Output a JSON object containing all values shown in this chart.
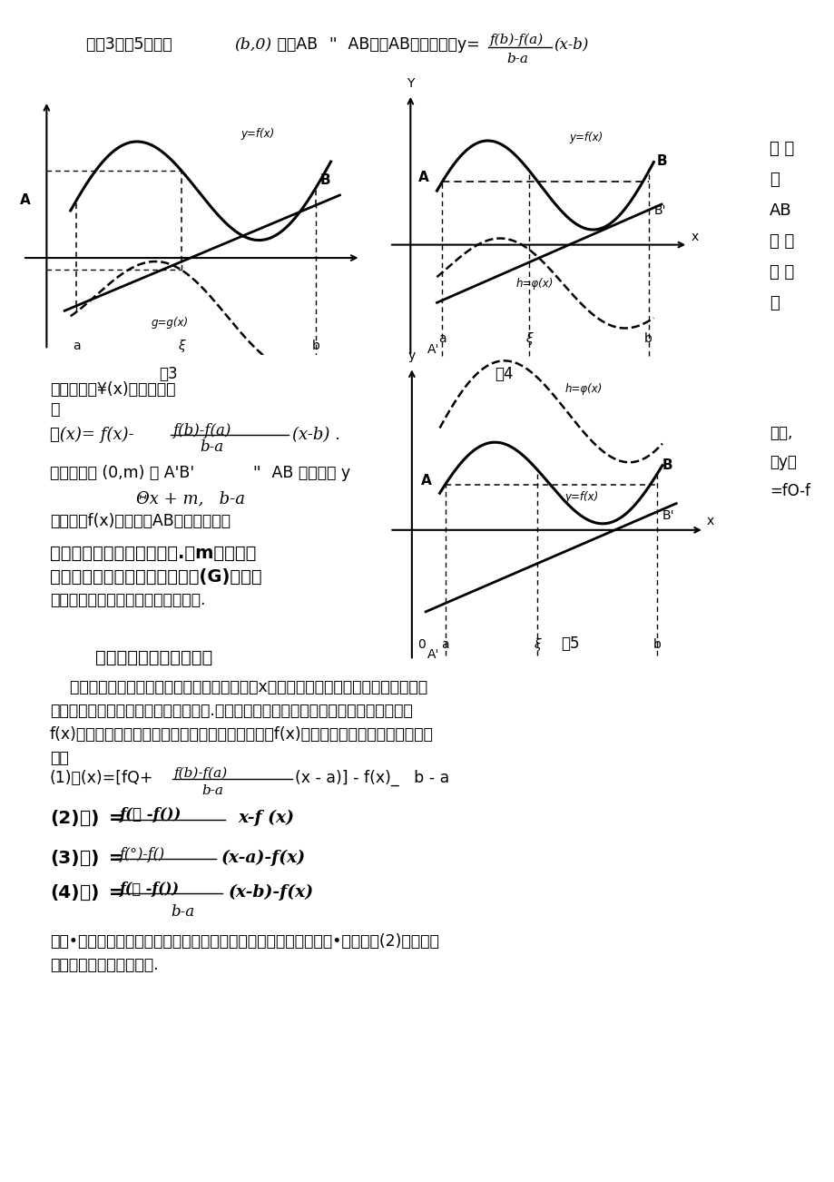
{
  "bg_color": "#ffffff",
  "text_color": "#000000",
  "line1": "推广3如图5过点作 (b,0) 直线AB’’ AB，直AB线的方程为y=",
  "line1b": "f(b)-f(a)",
  "line1c": "(x-b)",
  "line1d": "b-a",
  "right_col1": [
    "与 直",
    "线",
    "AB",
    "函 数",
    "之 差",
    "构"
  ],
  "right_col2": [
    "实上,",
    "过y轴",
    "=fO-f"
  ],
  "fig3_label": "图3",
  "fig4_label": "图4",
  "fig5_label": "图5",
  "block1_l1": "成辅助函数¥(x)，于是有：",
  "block1_l2": "事",
  "block1_l3a": "可(x)= f(x)-",
  "block1_l3b": "f(b)-f(a)",
  "block1_l3c": "(x-b) .",
  "block1_l3d": "b-a",
  "block1_l4": "上任已知点 (0,m) 作 A’B’’’ AB 得直线为 y",
  "block1_l5": "Θx + m,   b-a",
  "block2_l1": "从而利用f(x)与直线的AB函数之差构成",
  "block3_l1": "用来证明拉格朗日中值定理.因m是任意实",
  "block3_l2": "满足罗来中值定理的辅助函数中(G)都可数",
  "block3_l3": "数，显然，这样的辅助函数有无多个.",
  "heading": "用对称法引入辅助函数法",
  "body1": "    在第二种方法中引入的无数个辅助函数中关于x轴的对称函数也有无数个，显然这些函",
  "body2": "数也都可以用来证明拉格朗日中值定理.从几何意义上看，上面的辅助函数是用曲线函数",
  "body3": "f(x)减去直线函数，反过来，用直线函数减曲线函数f(x)，即可得与之对称的辅助函数如",
  "body4": "下：",
  "list1a": "(1)申(x)=[fQ+",
  "list1b": "f(b)-f(a)",
  "list1c": "(x - a)] - f(x)_   b - a",
  "list1d": "b-a",
  "list2a": "(2)乙)=",
  "list2b": "f(第 -f())",
  "list2c": "x-f (x)",
  "list3a": "(3)乙)=",
  "list3b": "f(°)-f()",
  "list3c": "(x-a)-f(x)",
  "list4a": "(4)比)=",
  "list4b": "f(力 -f())",
  "list4c": "(x-b)-f(x)",
  "list4d": "b-a",
  "footer1": "等等•这类能用来证明拉格朗日中值定理的辅助函数显然也有无数个•这里仅以(2)为例给出",
  "footer2": "拉格朗日中值定理的证明."
}
